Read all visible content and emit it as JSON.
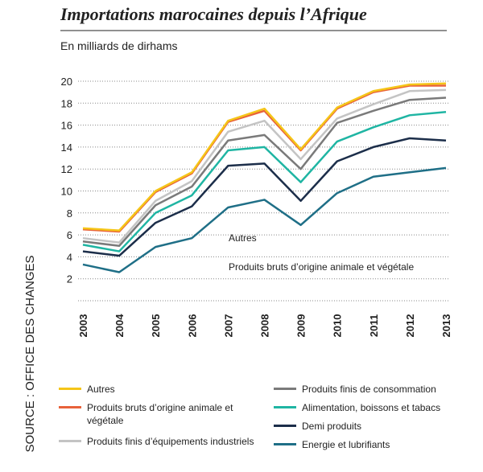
{
  "chart_data": {
    "type": "line",
    "title": "Importations marocaines depuis l’Afrique",
    "subtitle": "En milliards de dirhams",
    "source": "SOURCE : OFFICE DES CHANGES",
    "annotations": [
      "Autres",
      "Produits bruts d’origine animale et végétale"
    ],
    "categories": [
      "2003",
      "2004",
      "2005",
      "2006",
      "2007",
      "2008",
      "2009",
      "2010",
      "2011",
      "2012",
      "2013"
    ],
    "ylim": [
      0,
      20
    ],
    "yticks": [
      2,
      4,
      6,
      8,
      10,
      12,
      14,
      16,
      18,
      20
    ],
    "grid": true,
    "series": [
      {
        "name": "Autres",
        "color": "#f5c518",
        "values": [
          6.6,
          6.4,
          10.0,
          11.7,
          16.4,
          17.5,
          13.8,
          17.6,
          19.1,
          19.7,
          19.8
        ]
      },
      {
        "name": "Produits bruts d’origine animale et végétale",
        "color": "#e8623a",
        "values": [
          6.5,
          6.3,
          9.9,
          11.6,
          16.3,
          17.3,
          13.7,
          17.5,
          19.0,
          19.6,
          19.6
        ]
      },
      {
        "name": "Produits finis d’équipements industriels",
        "color": "#c4c4c4",
        "values": [
          5.7,
          5.3,
          9.1,
          10.9,
          15.4,
          16.4,
          12.9,
          16.6,
          17.9,
          19.1,
          19.2
        ]
      },
      {
        "name": "Produits finis de consommation",
        "color": "#7a7a7a",
        "values": [
          5.4,
          5.0,
          8.7,
          10.4,
          14.6,
          15.1,
          12.0,
          16.2,
          17.3,
          18.3,
          18.5
        ]
      },
      {
        "name": "Alimentation, boissons et tabacs",
        "color": "#1fb5a3",
        "values": [
          5.1,
          4.5,
          8.0,
          9.6,
          13.7,
          14.0,
          10.8,
          14.5,
          15.8,
          16.9,
          17.2
        ]
      },
      {
        "name": "Demi produits",
        "color": "#1c2e4a",
        "values": [
          4.5,
          4.1,
          7.1,
          8.6,
          12.3,
          12.5,
          9.1,
          12.7,
          14.0,
          14.8,
          14.6
        ]
      },
      {
        "name": "Energie et lubrifiants",
        "color": "#1f6f87",
        "values": [
          3.3,
          2.6,
          4.9,
          5.7,
          8.5,
          9.2,
          6.9,
          9.8,
          11.3,
          11.7,
          12.1
        ]
      }
    ]
  }
}
